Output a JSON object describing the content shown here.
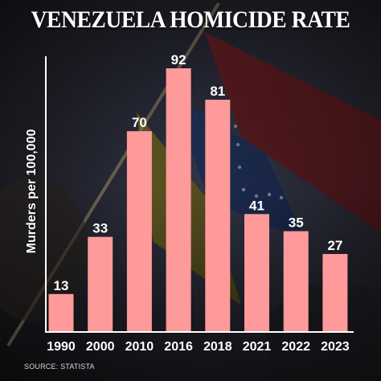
{
  "title": "VENEZUELA HOMICIDE RATE",
  "source": "SOURCE: STATISTA",
  "colors": {
    "bar": "#ff9a9a",
    "text": "#ffffff",
    "axis": "#ffffff"
  },
  "chart_data": {
    "type": "bar",
    "title": "VENEZUELA HOMICIDE RATE",
    "xlabel": "",
    "ylabel": "Murders per 100,000",
    "categories": [
      "1990",
      "2000",
      "2010",
      "2016",
      "2018",
      "2021",
      "2022",
      "2023"
    ],
    "values": [
      13,
      33,
      70,
      92,
      81,
      41,
      35,
      27
    ],
    "ylim": [
      0,
      92
    ],
    "grid": false,
    "legend": "none",
    "data_labels": true
  }
}
